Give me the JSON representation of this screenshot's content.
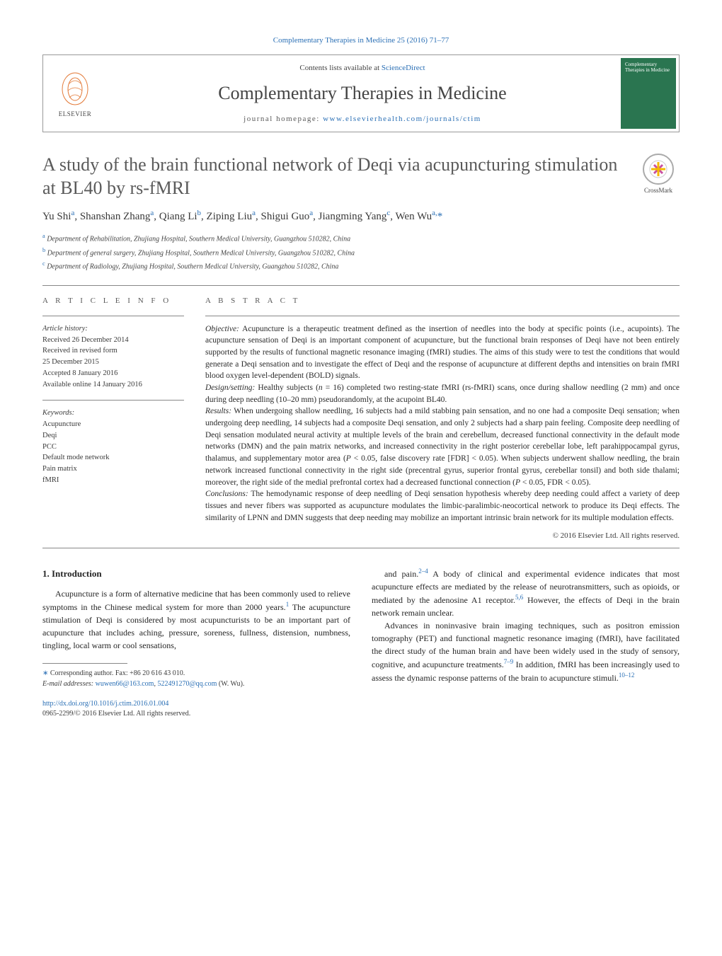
{
  "journal_ref": "Complementary Therapies in Medicine 25 (2016) 71–77",
  "header": {
    "contents_prefix": "Contents lists available at ",
    "contents_link": "ScienceDirect",
    "journal_name": "Complementary Therapies in Medicine",
    "homepage_prefix": "journal homepage: ",
    "homepage_url": "www.elsevierhealth.com/journals/ctim",
    "elsevier_label": "ELSEVIER",
    "cover_text": "Complementary Therapies in Medicine"
  },
  "crossmark_label": "CrossMark",
  "title": "A study of the brain functional network of Deqi via acupuncturing stimulation at BL40 by rs-fMRI",
  "authors_html": "Yu Shi<sup>a</sup>, Shanshan Zhang<sup>a</sup>, Qiang Li<sup>b</sup>, Ziping Liu<sup>a</sup>, Shigui Guo<sup>a</sup>, Jiangming Yang<sup>c</sup>, Wen Wu<sup>a,</sup><span class='asterisk'>*</span>",
  "affiliations": [
    {
      "sup": "a",
      "text": "Department of Rehabilitation, Zhujiang Hospital, Southern Medical University, Guangzhou 510282, China"
    },
    {
      "sup": "b",
      "text": "Department of general surgery, Zhujiang Hospital, Southern Medical University, Guangzhou 510282, China"
    },
    {
      "sup": "c",
      "text": "Department of Radiology, Zhujiang Hospital, Southern Medical University, Guangzhou 510282, China"
    }
  ],
  "article_info": {
    "label": "a r t i c l e   i n f o",
    "history_label": "Article history:",
    "history": [
      "Received 26 December 2014",
      "Received in revised form",
      "25 December 2015",
      "Accepted 8 January 2016",
      "Available online 14 January 2016"
    ],
    "keywords_label": "Keywords:",
    "keywords": [
      "Acupuncture",
      "Deqi",
      "PCC",
      "Default mode network",
      "Pain matrix",
      "fMRI"
    ]
  },
  "abstract": {
    "label": "a b s t r a c t",
    "sections": [
      {
        "label": "Objective:",
        "text": " Acupuncture is a therapeutic treatment defined as the insertion of needles into the body at specific points (i.e., acupoints). The acupuncture sensation of Deqi is an important component of acupuncture, but the functional brain responses of Deqi have not been entirely supported by the results of functional magnetic resonance imaging (fMRI) studies. The aims of this study were to test the conditions that would generate a Deqi sensation and to investigate the effect of Deqi and the response of acupuncture at different depths and intensities on brain fMRI blood oxygen level-dependent (BOLD) signals."
      },
      {
        "label": "Design/setting:",
        "text": " Healthy subjects (n = 16) completed two resting-state fMRI (rs-fMRI) scans, once during shallow needling (2 mm) and once during deep needling (10–20 mm) pseudorandomly, at the acupoint BL40."
      },
      {
        "label": "Results:",
        "text": " When undergoing shallow needling, 16 subjects had a mild stabbing pain sensation, and no one had a composite Deqi sensation; when undergoing deep needling, 14 subjects had a composite Deqi sensation, and only 2 subjects had a sharp pain feeling. Composite deep needling of Deqi sensation modulated neural activity at multiple levels of the brain and cerebellum, decreased functional connectivity in the default mode networks (DMN) and the pain matrix networks, and increased connectivity in the right posterior cerebellar lobe, left parahippocampal gyrus, thalamus, and supplementary motor area (P < 0.05, false discovery rate [FDR] < 0.05). When subjects underwent shallow needling, the brain network increased functional connectivity in the right side (precentral gyrus, superior frontal gyrus, cerebellar tonsil) and both side thalami; moreover, the right side of the medial prefrontal cortex had a decreased functional connection (P < 0.05, FDR < 0.05)."
      },
      {
        "label": "Conclusions:",
        "text": " The hemodynamic response of deep needling of Deqi sensation hypothesis whereby deep needing could affect a variety of deep tissues and never fibers was supported as acupuncture modulates the limbic-paralimbic-neocortical network to produce its Deqi effects. The similarity of LPNN and DMN suggests that deep needing may mobilize an important intrinsic brain network for its multiple modulation effects."
      }
    ],
    "copyright": "© 2016 Elsevier Ltd. All rights reserved."
  },
  "body": {
    "heading": "1.  Introduction",
    "col1_p1_pre": "Acupuncture is a form of alternative medicine that has been commonly used to relieve symptoms in the Chinese medical system for more than 2000 years.",
    "col1_p1_ref1": "1",
    "col1_p1_post": " The acupuncture stimulation of Deqi is considered by most acupuncturists to be an important part of acupuncture that includes aching, pressure, soreness, fullness, distension, numbness, tingling, local warm or cool sensations,",
    "col2_p1_pre": "and pain.",
    "col2_p1_ref1": "2–4",
    "col2_p1_mid": " A body of clinical and experimental evidence indicates that most acupuncture effects are mediated by the release of neurotransmitters, such as opioids, or mediated by the adenosine A1 receptor.",
    "col2_p1_ref2": "5,6",
    "col2_p1_post": " However, the effects of Deqi in the brain network remain unclear.",
    "col2_p2_pre": "Advances in noninvasive brain imaging techniques, such as positron emission tomography (PET) and functional magnetic resonance imaging (fMRI), have facilitated the direct study of the human brain and have been widely used in the study of sensory, cognitive, and acupuncture treatments.",
    "col2_p2_ref1": "7–9",
    "col2_p2_mid": " In addition, fMRI has been increasingly used to assess the dynamic response patterns of the brain to acupuncture stimuli.",
    "col2_p2_ref2": "10–12"
  },
  "footnote": {
    "corr_label": "Corresponding author. Fax: +86 20 616 43 010.",
    "email_label": "E-mail addresses:",
    "email1": "wuwen66@163.com",
    "email2": "522491270@qq.com",
    "email_tail": " (W. Wu)."
  },
  "bottom": {
    "doi": "http://dx.doi.org/10.1016/j.ctim.2016.01.004",
    "issn_line": "0965-2299/© 2016 Elsevier Ltd. All rights reserved."
  },
  "colors": {
    "link": "#2a6fb5",
    "heading_gray": "#5a5a5a",
    "border": "#888888",
    "cover_bg": "#2a7550"
  }
}
